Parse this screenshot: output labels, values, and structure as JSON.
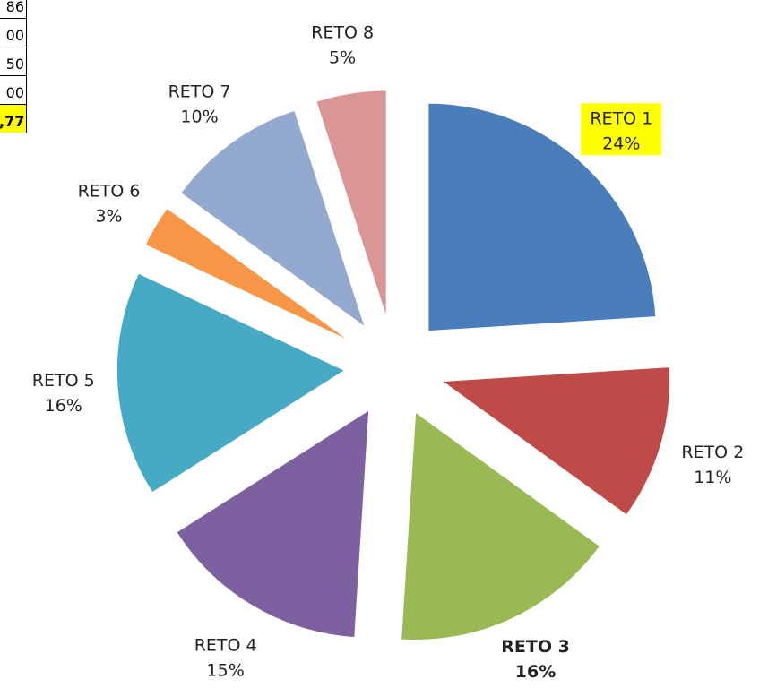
{
  "table": {
    "rows": [
      "86",
      "00",
      "50",
      "00",
      ",77"
    ]
  },
  "chart_data": {
    "type": "pie",
    "categories": [
      "RETO 1",
      "RETO 2",
      "RETO 3",
      "RETO 4",
      "RETO 5",
      "RETO 6",
      "RETO 7",
      "RETO 8"
    ],
    "values": [
      24,
      11,
      16,
      15,
      16,
      3,
      10,
      5
    ],
    "value_labels": [
      "24%",
      "11%",
      "16%",
      "15%",
      "16%",
      "3%",
      "10%",
      "5%"
    ],
    "colors": [
      "#4a7ebb",
      "#be4b48",
      "#98b954",
      "#7d60a0",
      "#46aac5",
      "#f79646",
      "#93a9cf",
      "#d99694"
    ]
  }
}
